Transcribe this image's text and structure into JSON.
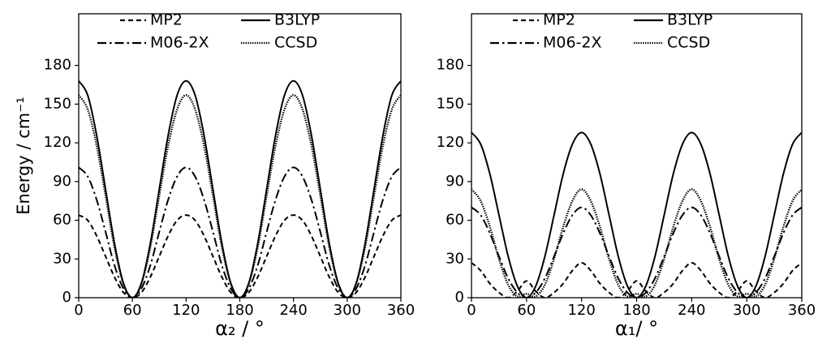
{
  "chart_data": [
    {
      "type": "line",
      "xlabel": "α₂ / °",
      "ylabel": "Energy / cm⁻¹",
      "x": [
        0,
        10,
        20,
        30,
        40,
        50,
        60,
        70,
        80,
        90,
        100,
        110,
        120,
        130,
        140,
        150,
        160,
        170,
        180,
        190,
        200,
        210,
        220,
        230,
        240,
        250,
        260,
        270,
        280,
        290,
        300,
        310,
        320,
        330,
        340,
        350,
        360
      ],
      "xlim": [
        0,
        360
      ],
      "xticks": [
        0,
        60,
        120,
        180,
        240,
        300,
        360
      ],
      "ylim": [
        0,
        220
      ],
      "yticks": [
        0,
        30,
        60,
        90,
        120,
        150,
        180
      ],
      "series": [
        {
          "name": "MP2",
          "color": "#000000",
          "dash": "dashed",
          "values": [
            64,
            60,
            48,
            32,
            16,
            4,
            0,
            4,
            16,
            32,
            48,
            60,
            64,
            60,
            48,
            32,
            16,
            4,
            0,
            4,
            16,
            32,
            48,
            60,
            64,
            60,
            48,
            32,
            16,
            4,
            0,
            4,
            16,
            32,
            48,
            60,
            64
          ]
        },
        {
          "name": "B3LYP",
          "color": "#000000",
          "dash": "solid",
          "values": [
            168,
            157,
            126,
            84,
            42,
            11,
            0,
            11,
            42,
            84,
            126,
            157,
            168,
            157,
            126,
            84,
            42,
            11,
            0,
            11,
            42,
            84,
            126,
            157,
            168,
            157,
            126,
            84,
            42,
            11,
            0,
            11,
            42,
            84,
            126,
            157,
            168
          ]
        },
        {
          "name": "M06-2X",
          "color": "#000000",
          "dash": "dashdot",
          "values": [
            101,
            94,
            76,
            51,
            25,
            7,
            0,
            7,
            25,
            51,
            76,
            94,
            101,
            94,
            76,
            51,
            25,
            7,
            0,
            7,
            25,
            51,
            76,
            94,
            101,
            94,
            76,
            51,
            25,
            7,
            0,
            7,
            25,
            51,
            76,
            94,
            101
          ]
        },
        {
          "name": "CCSD",
          "color": "#000000",
          "dash": "dotted",
          "values": [
            157,
            146,
            118,
            79,
            39,
            11,
            0,
            11,
            39,
            79,
            118,
            146,
            157,
            146,
            118,
            79,
            39,
            11,
            0,
            11,
            39,
            79,
            118,
            146,
            157,
            146,
            118,
            79,
            39,
            11,
            0,
            11,
            39,
            79,
            118,
            146,
            157
          ]
        }
      ]
    },
    {
      "type": "line",
      "xlabel": "α₁/ °",
      "x": [
        0,
        10,
        20,
        30,
        40,
        50,
        60,
        70,
        80,
        90,
        100,
        110,
        120,
        130,
        140,
        150,
        160,
        170,
        180,
        190,
        200,
        210,
        220,
        230,
        240,
        250,
        260,
        270,
        280,
        290,
        300,
        310,
        320,
        330,
        340,
        350,
        360
      ],
      "xlim": [
        0,
        360
      ],
      "xticks": [
        0,
        60,
        120,
        180,
        240,
        300,
        360
      ],
      "ylim": [
        0,
        220
      ],
      "yticks": [
        0,
        30,
        60,
        90,
        120,
        150,
        180
      ],
      "series": [
        {
          "name": "MP2",
          "color": "#000000",
          "dash": "dashed",
          "values": [
            27,
            21,
            11,
            4,
            0,
            5,
            13,
            5,
            0,
            4,
            11,
            21,
            27,
            21,
            11,
            4,
            0,
            5,
            13,
            5,
            0,
            4,
            11,
            21,
            27,
            21,
            11,
            4,
            0,
            5,
            13,
            5,
            0,
            4,
            11,
            21,
            27
          ]
        },
        {
          "name": "B3LYP",
          "color": "#000000",
          "dash": "solid",
          "values": [
            128,
            119,
            96,
            64,
            32,
            9,
            0,
            9,
            32,
            64,
            96,
            119,
            128,
            119,
            96,
            64,
            32,
            9,
            0,
            9,
            32,
            64,
            96,
            119,
            128,
            119,
            96,
            64,
            32,
            9,
            0,
            9,
            32,
            64,
            96,
            119,
            128
          ]
        },
        {
          "name": "M06-2X",
          "color": "#000000",
          "dash": "dashdot",
          "values": [
            70,
            64,
            50,
            32,
            15,
            4,
            0,
            4,
            15,
            32,
            50,
            64,
            70,
            64,
            50,
            32,
            15,
            4,
            0,
            4,
            15,
            32,
            50,
            64,
            70,
            64,
            50,
            32,
            15,
            4,
            0,
            4,
            15,
            32,
            50,
            64,
            70
          ]
        },
        {
          "name": "CCSD",
          "color": "#000000",
          "dash": "dotted",
          "values": [
            84,
            75,
            55,
            30,
            10,
            1,
            3,
            1,
            10,
            30,
            55,
            75,
            84,
            75,
            55,
            30,
            10,
            1,
            3,
            1,
            10,
            30,
            55,
            75,
            84,
            75,
            55,
            30,
            10,
            1,
            3,
            1,
            10,
            30,
            55,
            75,
            84
          ]
        }
      ]
    }
  ]
}
